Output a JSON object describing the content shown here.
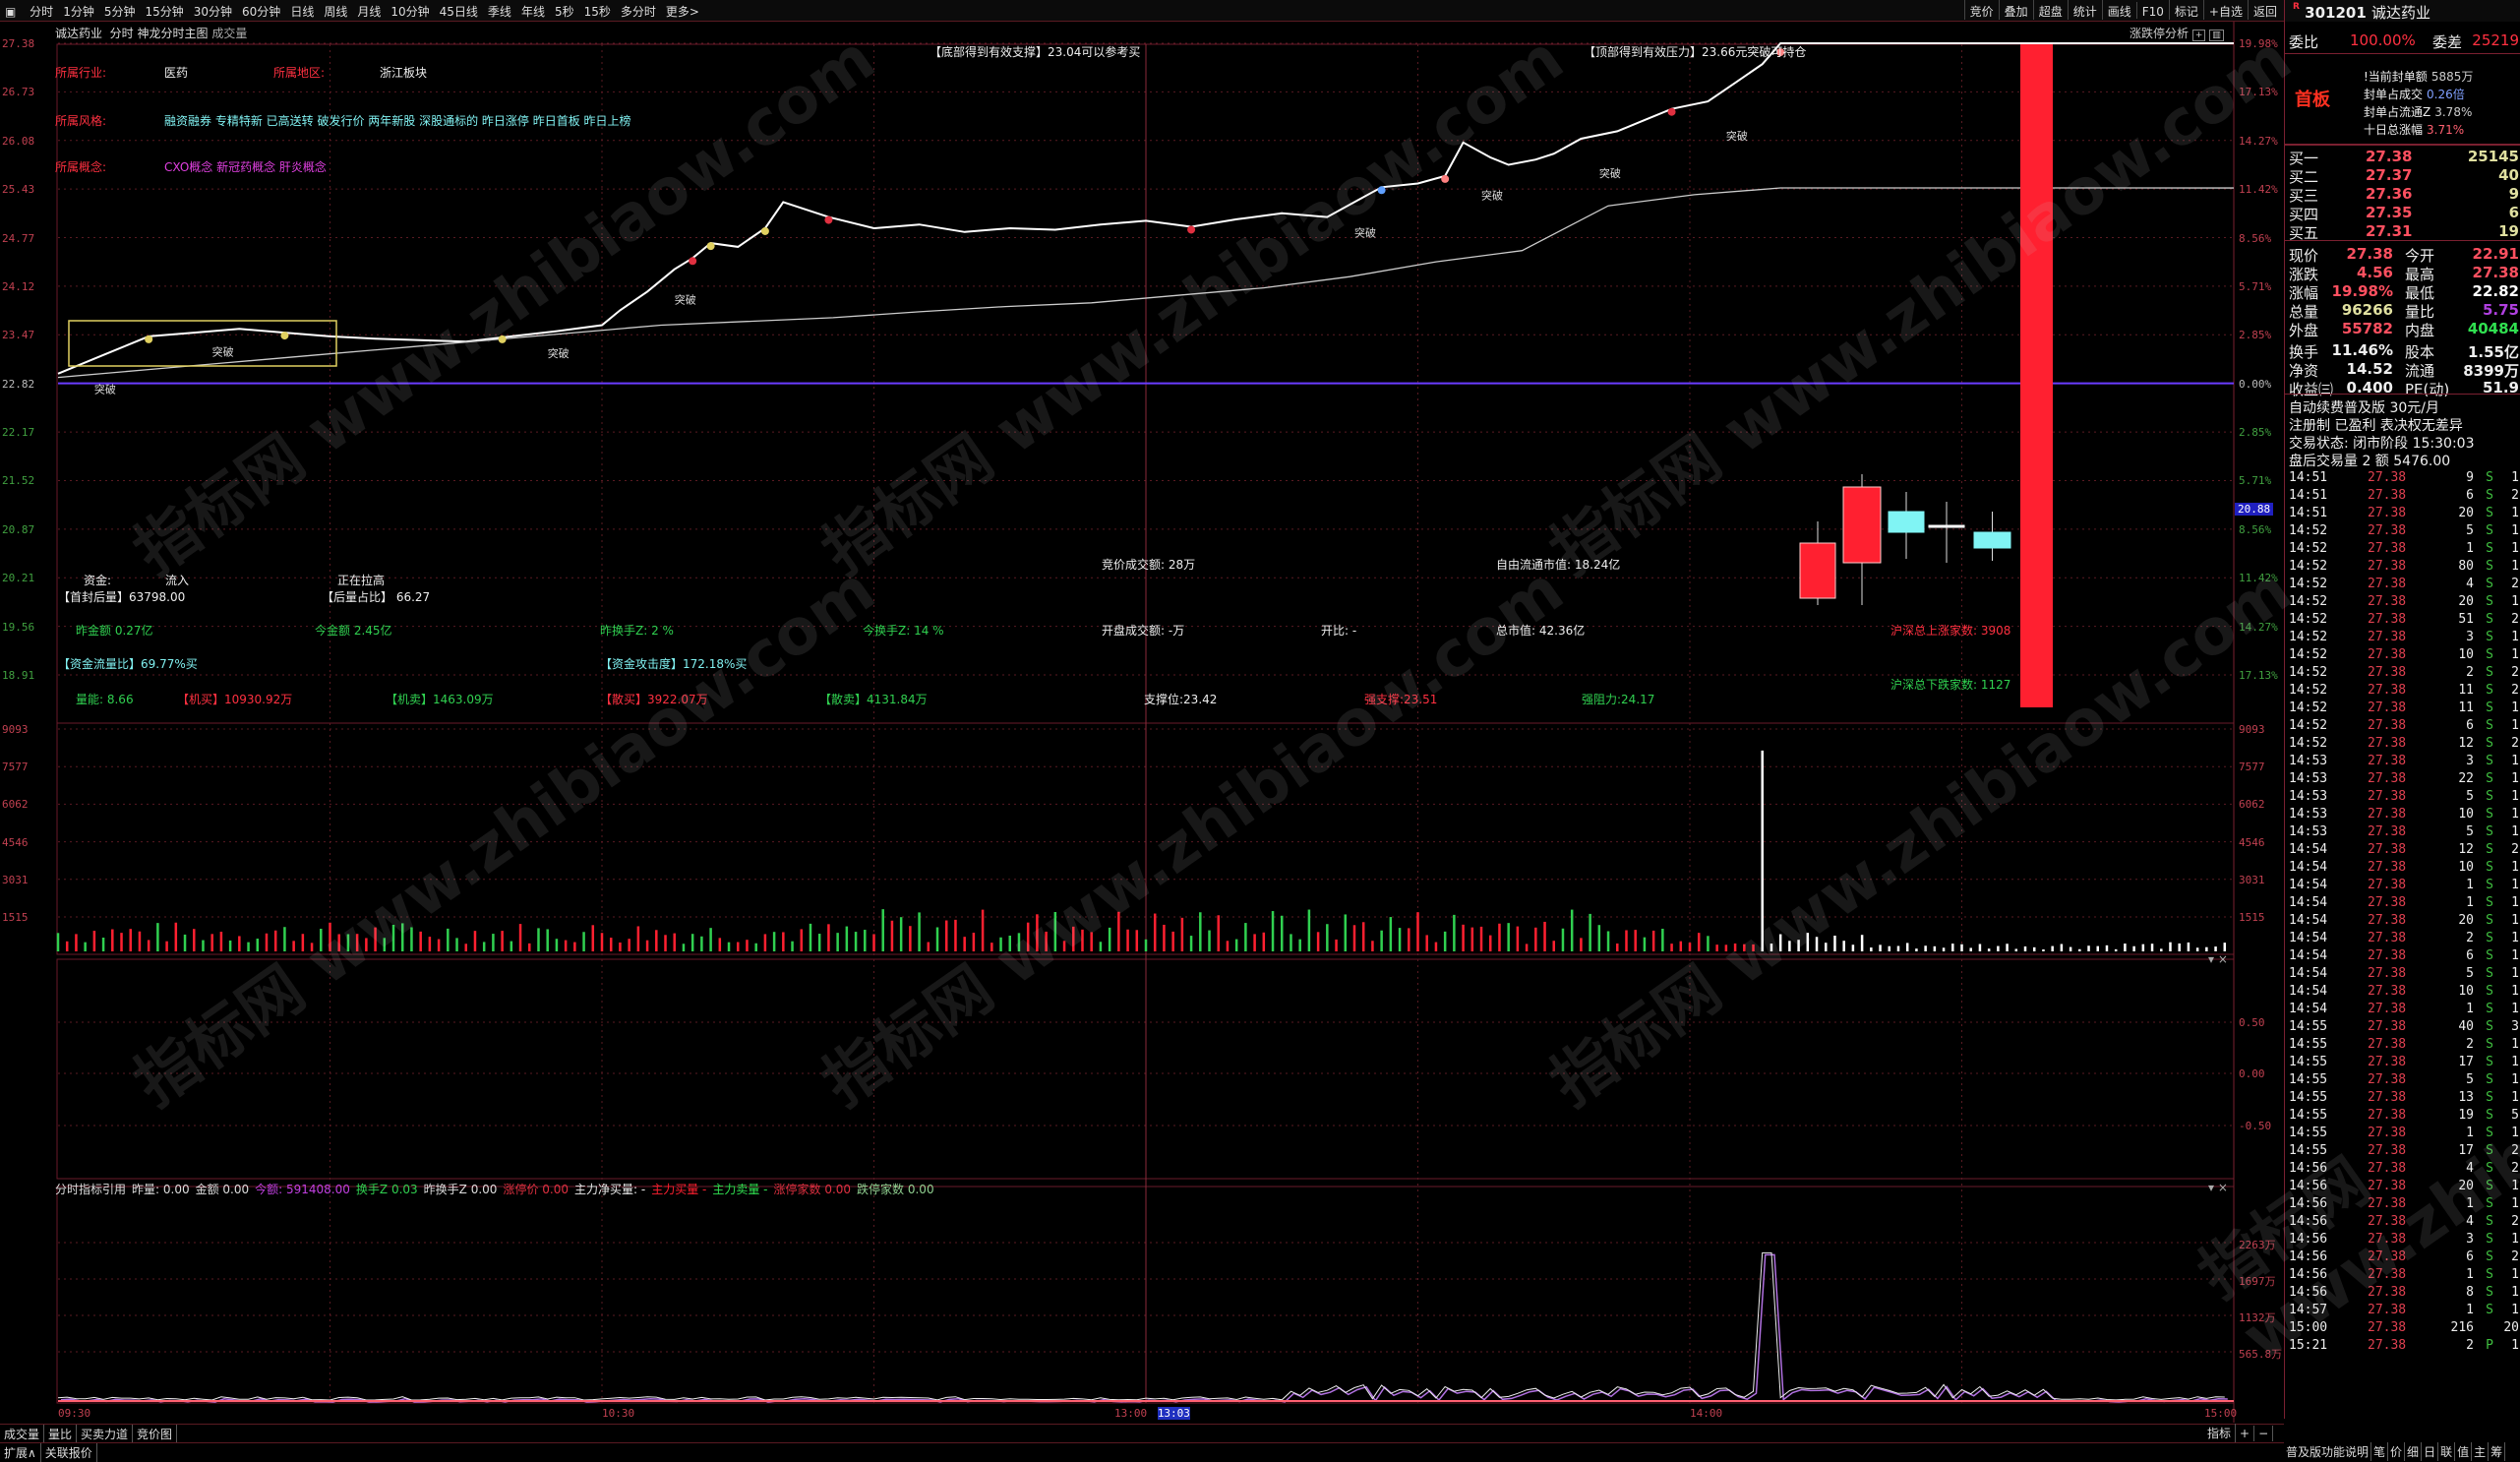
{
  "toolbar": {
    "periods": [
      "分时",
      "1分钟",
      "5分钟",
      "15分钟",
      "30分钟",
      "60分钟",
      "日线",
      "周线",
      "月线",
      "10分钟",
      "45日线",
      "季线",
      "年线",
      "5秒",
      "15秒",
      "多分时",
      "更多>"
    ],
    "right_tools": [
      "竞价",
      "叠加",
      "超盘",
      "统计",
      "画线",
      "F10",
      "标记",
      "+自选",
      "返回"
    ]
  },
  "title_row": {
    "stock": "诚达药业",
    "mode": "分时",
    "main_chart": "神龙分时主图",
    "sub": "成交量",
    "limit_analysis": "涨跌停分析"
  },
  "stock": {
    "flag": "R",
    "code": "301201",
    "name": "诚达药业"
  },
  "price_axis": {
    "left": [
      "27.38",
      "26.73",
      "26.08",
      "25.43",
      "24.77",
      "24.12",
      "23.47",
      "22.82",
      "22.17",
      "21.52",
      "20.87",
      "20.21",
      "19.56",
      "18.91"
    ],
    "right": [
      "19.98%",
      "17.13%",
      "14.27%",
      "11.42%",
      "8.56%",
      "5.71%",
      "2.85%",
      "0.00%",
      "2.85%",
      "5.71%",
      "8.56%",
      "11.42%",
      "14.27%",
      "17.13%"
    ],
    "cursor_value": "20.88"
  },
  "volume_axis": [
    "9093",
    "7577",
    "6062",
    "4546",
    "3031",
    "1515"
  ],
  "ind1_axis": [
    "0.50",
    "0.00",
    "-0.50"
  ],
  "ind2_axis": [
    "2263万",
    "1697万",
    "1132万",
    "565.8万"
  ],
  "time_axis": [
    "09:30",
    "10:30",
    "13:00",
    "13:03",
    "14:00",
    "15:00"
  ],
  "info": {
    "industry_label": "所属行业:",
    "industry": "医药",
    "region_label": "所属地区:",
    "region": "浙江板块",
    "style_label": "所属风格:",
    "styles": "融资融券 专精特新 已高送转 破发行价 两年新股 深股通标的 昨日涨停 昨日首板 昨日上榜",
    "concept_label": "所属概念:",
    "concepts": "CXO概念 新冠药概念 肝炎概念",
    "support_msg": "【底部得到有效支撑】23.04可以参考买",
    "pressure_msg": "【顶部得到有效压力】23.66元突破可持仓",
    "breakout": "突破",
    "fund_label": "资金:",
    "fund_flow": "流入",
    "pulling": "正在拉高",
    "first_seal": "【首封后量】63798.00",
    "after_ratio": "【后量占比】 66.27",
    "auction_amt": "竞价成交额: 28万",
    "free_cap": "自由流通市值: 18.24亿",
    "yest_amt": "昨金额 0.27亿",
    "today_amt": "今金额 2.45亿",
    "yest_turn": "昨换手Z: 2 %",
    "today_turn": "今换手Z: 14 %",
    "open_amt": "开盘成交额: -万",
    "open_ratio": "开比: -",
    "total_cap": "总市值: 42.36亿",
    "up_count": "沪深总上涨家数: 3908",
    "flow_ratio": "【资金流量比】69.77%买",
    "attack": "【资金攻击度】172.18%买",
    "energy": "量能: 8.66",
    "inst_buy": "【机买】10930.92万",
    "inst_sell": "【机卖】1463.09万",
    "retail_buy": "【散买】3922.07万",
    "retail_sell": "【散卖】4131.84万",
    "support": "支撑位:23.42",
    "strong_support": "强支撑:23.51",
    "strong_resist": "强阻力:24.17",
    "down_count": "沪深总下跌家数: 1127"
  },
  "price_series": {
    "minutes": [
      0,
      5,
      10,
      15,
      20,
      25,
      30,
      35,
      40,
      45,
      50,
      55,
      60,
      62,
      65,
      68,
      70,
      72,
      75,
      78,
      80,
      85,
      90,
      95,
      100,
      105,
      110,
      115,
      120,
      125,
      130,
      135,
      140,
      143,
      146,
      150,
      153,
      155,
      158,
      160,
      163,
      165,
      168,
      172,
      175,
      178,
      182,
      185,
      188,
      190,
      240
    ],
    "prices": [
      22.95,
      23.2,
      23.45,
      23.5,
      23.55,
      23.5,
      23.45,
      23.42,
      23.4,
      23.38,
      23.45,
      23.52,
      23.6,
      23.8,
      24.05,
      24.35,
      24.5,
      24.7,
      24.65,
      24.9,
      25.25,
      25.05,
      24.9,
      24.95,
      24.85,
      24.9,
      24.88,
      24.95,
      25.0,
      24.92,
      25.02,
      25.1,
      25.05,
      25.25,
      25.45,
      25.5,
      25.6,
      26.05,
      25.85,
      25.75,
      25.82,
      25.9,
      26.1,
      26.2,
      26.35,
      26.5,
      26.6,
      26.85,
      27.1,
      27.38,
      27.38
    ],
    "avg_prices": [
      22.9,
      23.0,
      23.1,
      23.2,
      23.3,
      23.4,
      23.5,
      23.6,
      23.65,
      23.7,
      23.78,
      23.85,
      23.9,
      24.0,
      24.1,
      24.25,
      24.45,
      24.6,
      25.2,
      25.35,
      25.44
    ],
    "last": "27.38"
  },
  "ind2_header": [
    {
      "t": "分时指标引用",
      "c": "#dddddd"
    },
    {
      "t": "昨量: 0.00",
      "c": "#dddddd"
    },
    {
      "t": "金额 0.00",
      "c": "#dddddd"
    },
    {
      "t": "今额: 591408.00",
      "c": "#c040e0"
    },
    {
      "t": "换手Z 0.03",
      "c": "#30d050"
    },
    {
      "t": "昨换手Z 0.00",
      "c": "#dddddd"
    },
    {
      "t": "涨停价 0.00",
      "c": "#e03040"
    },
    {
      "t": "主力净买量: -",
      "c": "#eeeeee"
    },
    {
      "t": "主力买量 -",
      "c": "#ff2030"
    },
    {
      "t": "主力卖量 -",
      "c": "#30e050"
    },
    {
      "t": "涨停家数 0.00",
      "c": "#e03040"
    },
    {
      "t": "跌停家数 0.00",
      "c": "#90d090"
    }
  ],
  "quote": {
    "wb_label": "委比",
    "wb": "100.00%",
    "wc_label": "委差",
    "wc": "25219",
    "board": "首板",
    "seal_lines": [
      {
        "l": "!当前封单额",
        "v": "5885万"
      },
      {
        "l": "封单占成交",
        "v": "0.26倍"
      },
      {
        "l": "封单占流通Z",
        "v": "3.78%"
      },
      {
        "l": "十日总涨幅",
        "v": "3.71%"
      }
    ],
    "bids": [
      {
        "l": "买一",
        "p": "27.38",
        "v": "25145"
      },
      {
        "l": "买二",
        "p": "27.37",
        "v": "40"
      },
      {
        "l": "买三",
        "p": "27.36",
        "v": "9"
      },
      {
        "l": "买四",
        "p": "27.35",
        "v": "6"
      },
      {
        "l": "买五",
        "p": "27.31",
        "v": "19"
      }
    ],
    "stats": [
      {
        "l1": "现价",
        "v1": "27.38",
        "c1": "#ff5060",
        "l2": "今开",
        "v2": "22.91",
        "c2": "#ff5060"
      },
      {
        "l1": "涨跌",
        "v1": "4.56",
        "c1": "#ff5060",
        "l2": "最高",
        "v2": "27.38",
        "c2": "#ff5060"
      },
      {
        "l1": "涨幅",
        "v1": "19.98%",
        "c1": "#ff5060",
        "l2": "最低",
        "v2": "22.82",
        "c2": "#ffffff"
      },
      {
        "l1": "总量",
        "v1": "96266",
        "c1": "#e0e0a0",
        "l2": "量比",
        "v2": "5.75",
        "c2": "#b040e0"
      },
      {
        "l1": "外盘",
        "v1": "55782",
        "c1": "#ff5060",
        "l2": "内盘",
        "v2": "40484",
        "c2": "#30e050"
      },
      {
        "l1": "换手",
        "v1": "11.46%",
        "c1": "#eeeeee",
        "l2": "股本",
        "v2": "1.55亿",
        "c2": "#eeeeee"
      },
      {
        "l1": "净资",
        "v1": "14.52",
        "c1": "#eeeeee",
        "l2": "流通",
        "v2": "8399万",
        "c2": "#eeeeee"
      },
      {
        "l1": "收益㈢",
        "v1": "0.400",
        "c1": "#eeeeee",
        "l2": "PE(动)",
        "v2": "51.9",
        "c2": "#eeeeee"
      }
    ],
    "notes": [
      "自动续费普及版  30元/月",
      "注册制 已盈利 表决权无差异",
      "交易状态: 闭市阶段 15:30:03",
      "盘后交易量 2 额 5476.00"
    ]
  },
  "ticks": [
    [
      "14:51",
      "27.38",
      "9",
      "S",
      "1"
    ],
    [
      "14:51",
      "27.38",
      "6",
      "S",
      "2"
    ],
    [
      "14:51",
      "27.38",
      "20",
      "S",
      "1"
    ],
    [
      "14:52",
      "27.38",
      "5",
      "S",
      "1"
    ],
    [
      "14:52",
      "27.38",
      "1",
      "S",
      "1"
    ],
    [
      "14:52",
      "27.38",
      "80",
      "S",
      "1"
    ],
    [
      "14:52",
      "27.38",
      "4",
      "S",
      "2"
    ],
    [
      "14:52",
      "27.38",
      "20",
      "S",
      "1"
    ],
    [
      "14:52",
      "27.38",
      "51",
      "S",
      "2"
    ],
    [
      "14:52",
      "27.38",
      "3",
      "S",
      "1"
    ],
    [
      "14:52",
      "27.38",
      "10",
      "S",
      "1"
    ],
    [
      "14:52",
      "27.38",
      "2",
      "S",
      "2"
    ],
    [
      "14:52",
      "27.38",
      "11",
      "S",
      "2"
    ],
    [
      "14:52",
      "27.38",
      "11",
      "S",
      "1"
    ],
    [
      "14:52",
      "27.38",
      "6",
      "S",
      "1"
    ],
    [
      "14:52",
      "27.38",
      "12",
      "S",
      "2"
    ],
    [
      "14:53",
      "27.38",
      "3",
      "S",
      "1"
    ],
    [
      "14:53",
      "27.38",
      "22",
      "S",
      "1"
    ],
    [
      "14:53",
      "27.38",
      "5",
      "S",
      "1"
    ],
    [
      "14:53",
      "27.38",
      "10",
      "S",
      "1"
    ],
    [
      "14:53",
      "27.38",
      "5",
      "S",
      "1"
    ],
    [
      "14:54",
      "27.38",
      "12",
      "S",
      "2"
    ],
    [
      "14:54",
      "27.38",
      "10",
      "S",
      "1"
    ],
    [
      "14:54",
      "27.38",
      "1",
      "S",
      "1"
    ],
    [
      "14:54",
      "27.38",
      "1",
      "S",
      "1"
    ],
    [
      "14:54",
      "27.38",
      "20",
      "S",
      "1"
    ],
    [
      "14:54",
      "27.38",
      "2",
      "S",
      "1"
    ],
    [
      "14:54",
      "27.38",
      "6",
      "S",
      "1"
    ],
    [
      "14:54",
      "27.38",
      "5",
      "S",
      "1"
    ],
    [
      "14:54",
      "27.38",
      "10",
      "S",
      "1"
    ],
    [
      "14:54",
      "27.38",
      "1",
      "S",
      "1"
    ],
    [
      "14:55",
      "27.38",
      "40",
      "S",
      "3"
    ],
    [
      "14:55",
      "27.38",
      "2",
      "S",
      "1"
    ],
    [
      "14:55",
      "27.38",
      "17",
      "S",
      "1"
    ],
    [
      "14:55",
      "27.38",
      "5",
      "S",
      "1"
    ],
    [
      "14:55",
      "27.38",
      "13",
      "S",
      "1"
    ],
    [
      "14:55",
      "27.38",
      "19",
      "S",
      "5"
    ],
    [
      "14:55",
      "27.38",
      "1",
      "S",
      "1"
    ],
    [
      "14:55",
      "27.38",
      "17",
      "S",
      "2"
    ],
    [
      "14:56",
      "27.38",
      "4",
      "S",
      "2"
    ],
    [
      "14:56",
      "27.38",
      "20",
      "S",
      "1"
    ],
    [
      "14:56",
      "27.38",
      "1",
      "S",
      "1"
    ],
    [
      "14:56",
      "27.38",
      "4",
      "S",
      "2"
    ],
    [
      "14:56",
      "27.38",
      "3",
      "S",
      "1"
    ],
    [
      "14:56",
      "27.38",
      "6",
      "S",
      "2"
    ],
    [
      "14:56",
      "27.38",
      "1",
      "S",
      "1"
    ],
    [
      "14:56",
      "27.38",
      "8",
      "S",
      "1"
    ],
    [
      "14:57",
      "27.38",
      "1",
      "S",
      "1"
    ],
    [
      "15:00",
      "27.38",
      "216",
      "",
      "20"
    ],
    [
      "15:21",
      "27.38",
      "2",
      "P",
      "1"
    ]
  ],
  "bottom_tabs": [
    "成交量",
    "量比",
    "买卖力道",
    "竞价图"
  ],
  "bottom_tabs2": [
    "扩展∧",
    "关联报价"
  ],
  "indicator_ctrl": [
    "指标",
    "+",
    "−"
  ],
  "right_bottom_tabs": [
    "普及版功能说明",
    "笔",
    "价",
    "细",
    "日",
    "联",
    "值",
    "主",
    "筹"
  ],
  "watermark": "指标网 www.zhibiaow.com",
  "colors": {
    "up": "#ff2030",
    "down": "#30d050",
    "flat_line": "#6a3cff",
    "grid": "#5a1a22",
    "cyan_candle": "#80f4f4"
  }
}
